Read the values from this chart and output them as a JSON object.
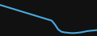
{
  "x": [
    0,
    1,
    2,
    3,
    4,
    5,
    6,
    7,
    8,
    9,
    10,
    11,
    12,
    13,
    14,
    15,
    16,
    17,
    18,
    19,
    20,
    21,
    22,
    23,
    24,
    25,
    26,
    27,
    28,
    29,
    30
  ],
  "y": [
    10.0,
    9.7,
    9.4,
    9.1,
    8.8,
    8.5,
    8.2,
    7.9,
    7.6,
    7.3,
    7.0,
    6.7,
    6.4,
    6.1,
    5.8,
    5.5,
    5.2,
    4.0,
    2.5,
    1.8,
    1.6,
    1.5,
    1.4,
    1.4,
    1.5,
    1.6,
    1.8,
    2.0,
    2.1,
    2.2,
    2.3
  ],
  "line_color": "#4aaadd",
  "line_width": 1.5,
  "background_color": "#111111",
  "ylim": [
    0.5,
    11.5
  ],
  "xlim": [
    0,
    30
  ]
}
